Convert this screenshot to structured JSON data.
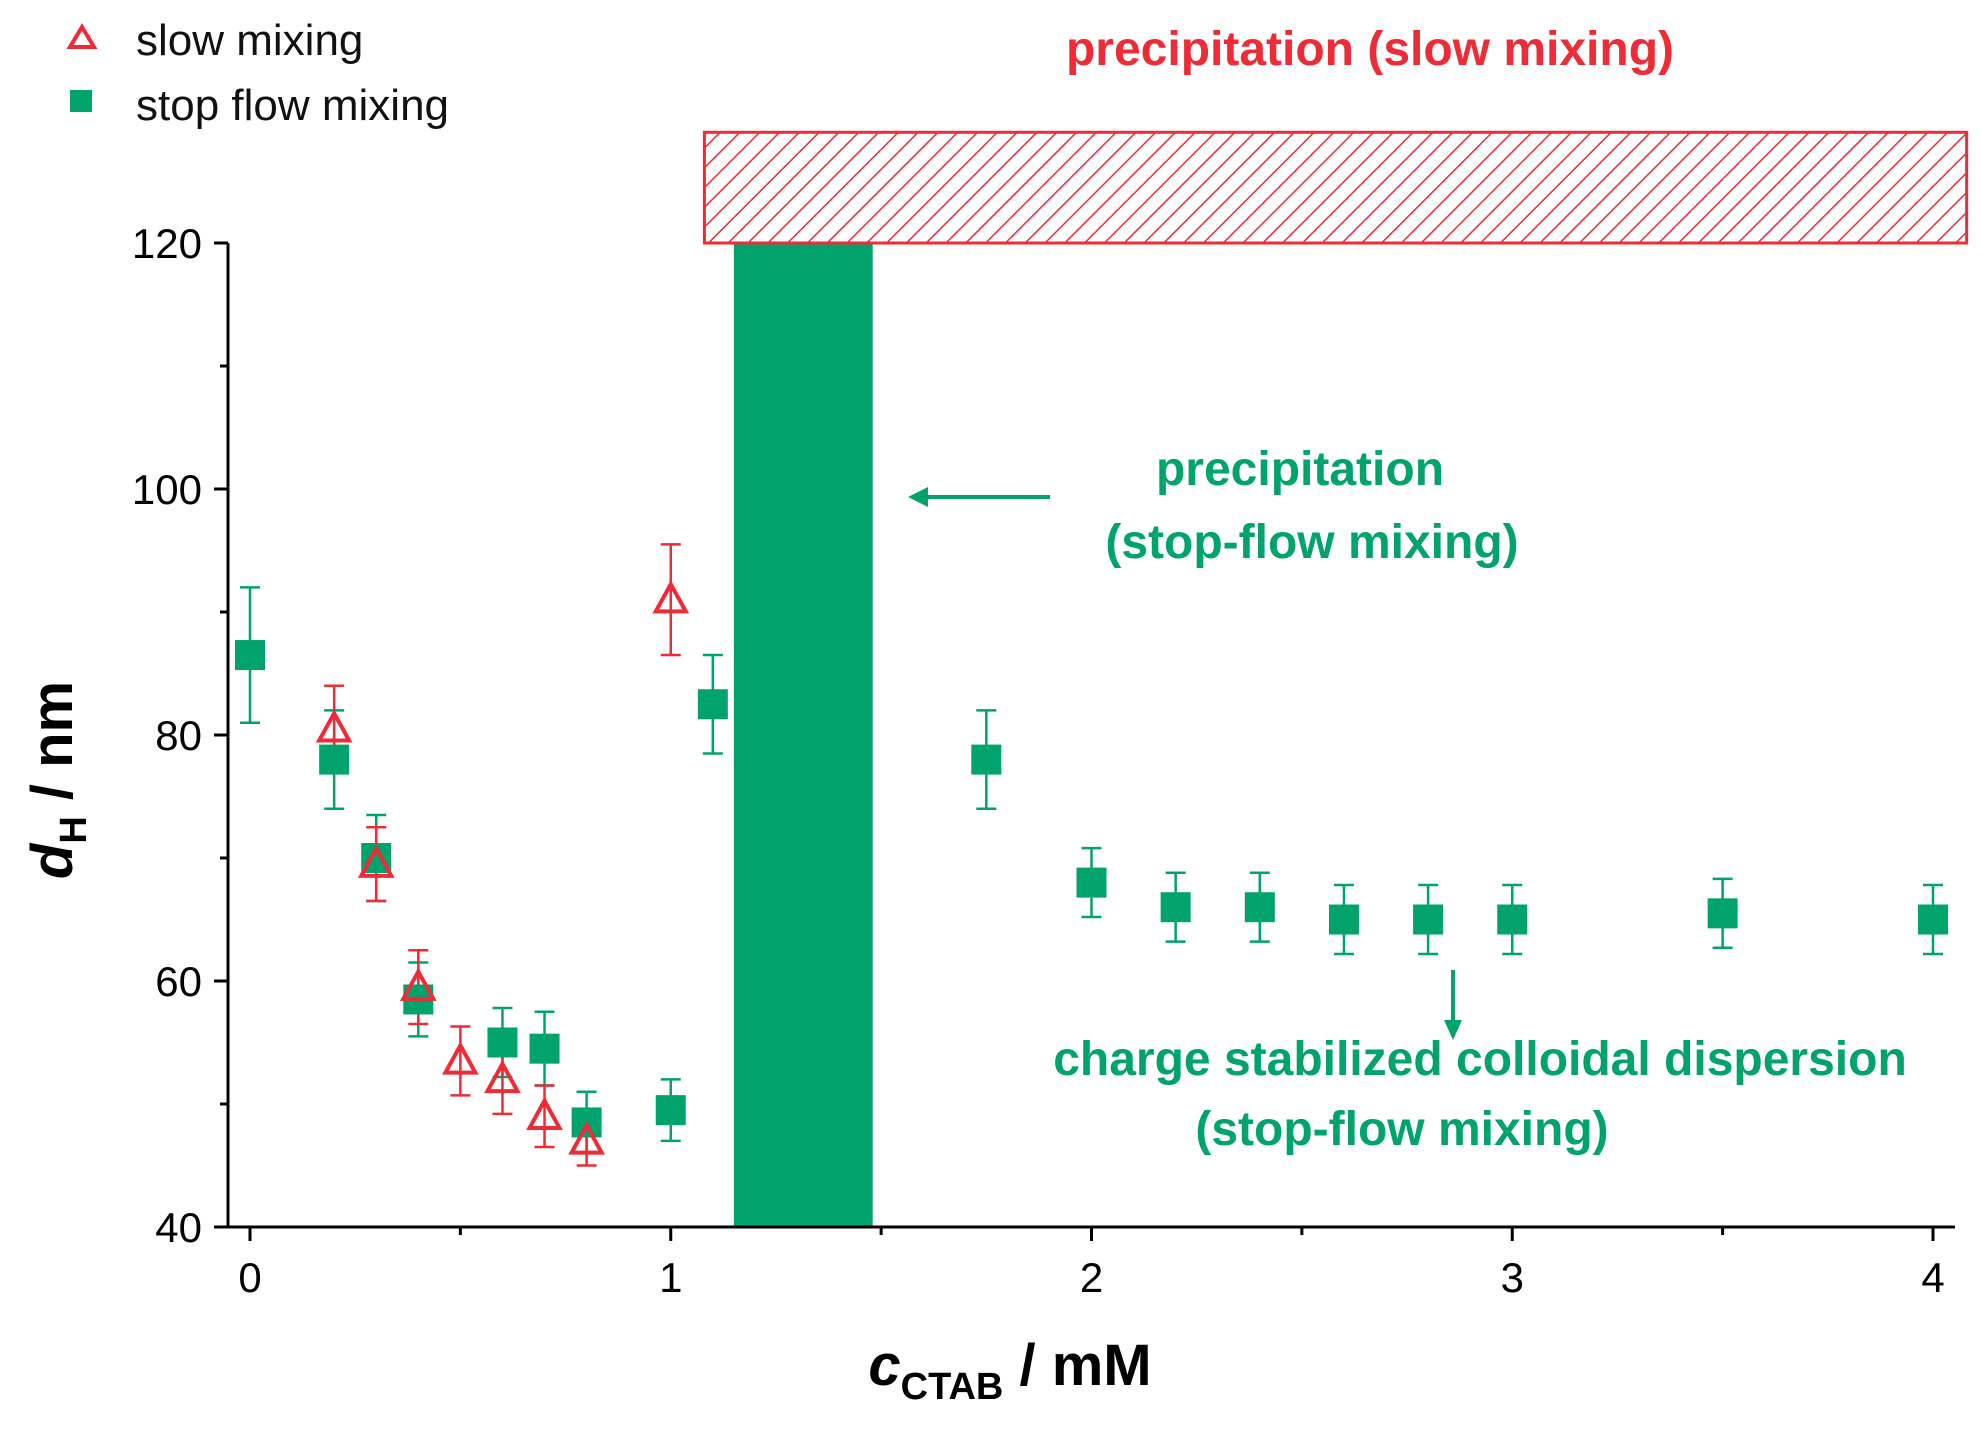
{
  "chart_data": {
    "type": "scatter",
    "xlabel": {
      "main": "c",
      "sub": "CTAB",
      "unit": " / mM"
    },
    "ylabel": {
      "main": "d",
      "sub": "H",
      "unit": " / nm"
    },
    "xlim": [
      0,
      4
    ],
    "ylim": [
      40,
      120
    ],
    "x_ticks": [
      0,
      1,
      2,
      3,
      4
    ],
    "y_ticks": [
      40,
      60,
      80,
      100,
      120
    ],
    "colors": {
      "slow": "#ee2b36",
      "stop": "#00a36c"
    },
    "series": [
      {
        "name": "slow mixing",
        "marker": "open-triangle",
        "x": [
          0.2,
          0.3,
          0.4,
          0.5,
          0.6,
          0.7,
          0.8,
          1.0
        ],
        "y": [
          80.5,
          69.5,
          59.5,
          53.5,
          52.0,
          49.0,
          47.0,
          91.0
        ],
        "err": [
          3.5,
          3.0,
          3.0,
          2.8,
          2.8,
          2.5,
          2.0,
          4.5
        ]
      },
      {
        "name": "stop flow mixing",
        "marker": "filled-square",
        "x": [
          0.0,
          0.2,
          0.3,
          0.4,
          0.6,
          0.7,
          0.8,
          1.0,
          1.1,
          1.75,
          2.0,
          2.2,
          2.4,
          2.6,
          2.8,
          3.0,
          3.5,
          4.0
        ],
        "y": [
          86.5,
          78.0,
          70.0,
          58.5,
          55.0,
          54.5,
          48.5,
          49.5,
          82.5,
          78.0,
          68.0,
          66.0,
          66.0,
          65.0,
          65.0,
          65.0,
          65.5,
          65.0
        ],
        "err": [
          5.5,
          4.0,
          3.5,
          3.0,
          2.8,
          3.0,
          2.5,
          2.5,
          4.0,
          4.0,
          2.8,
          2.8,
          2.8,
          2.8,
          2.8,
          2.8,
          2.8,
          2.8
        ]
      }
    ],
    "regions": [
      {
        "name": "precipitation-stop-flow",
        "x_from": 1.15,
        "x_to": 1.48,
        "y_from": 40,
        "y_to": 120,
        "fill": "solid"
      },
      {
        "name": "precipitation-slow",
        "x_from": 1.08,
        "x_to": 4.08,
        "y_from": 120,
        "y_to": 129,
        "fill": "hatched"
      }
    ],
    "annotations": {
      "slow_region": "precipitation (slow mixing)",
      "stop_region_line1": "precipitation",
      "stop_region_line2": "(stop-flow mixing)",
      "dispersion_line1": "charge stabilized colloidal dispersion",
      "dispersion_line2": "(stop-flow mixing)"
    },
    "legend": [
      "slow mixing",
      "stop flow mixing"
    ],
    "legend_position": "top-left"
  }
}
